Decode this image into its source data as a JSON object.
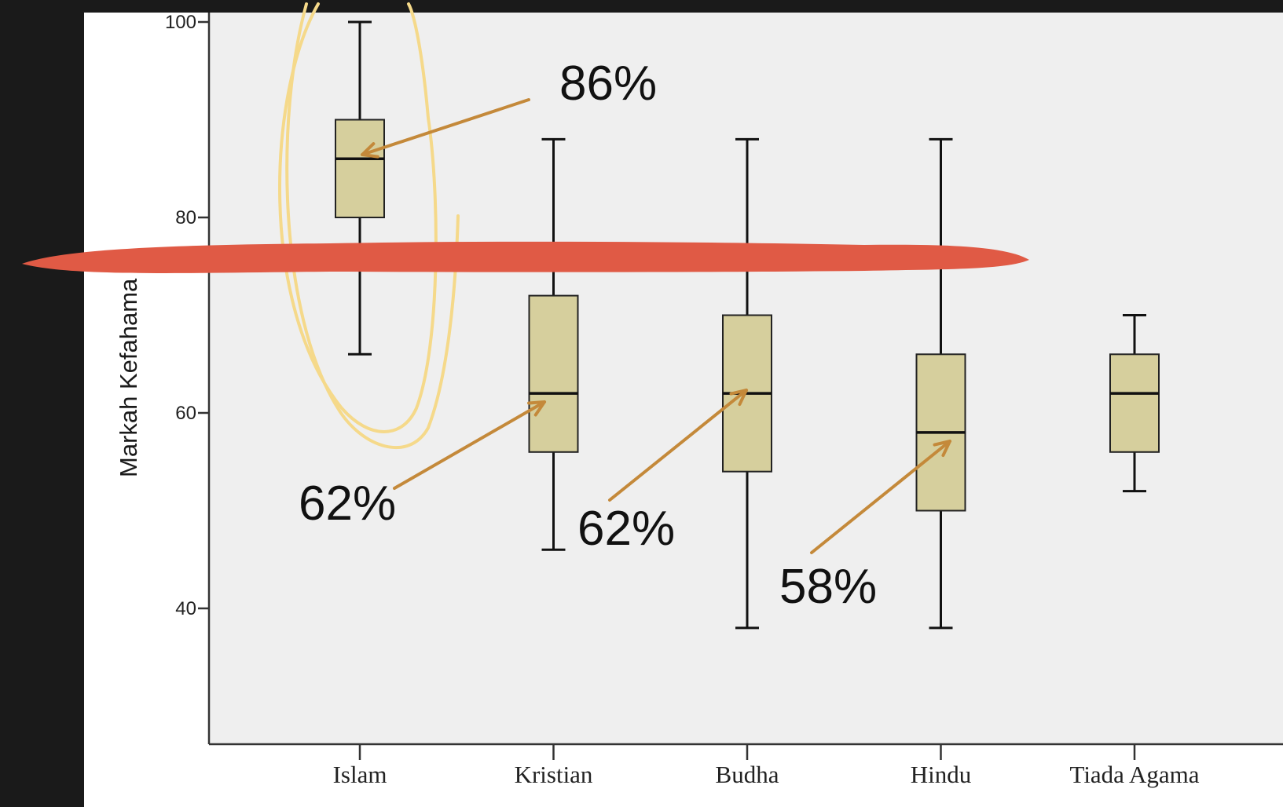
{
  "chart_data": {
    "type": "boxplot",
    "title": "",
    "xlabel": "",
    "ylabel": "Markah Kefahama",
    "ylim": [
      26,
      101
    ],
    "yticks": [
      40,
      60,
      80,
      100
    ],
    "grid": false,
    "categories": [
      "Islam",
      "Kristian",
      "Budha",
      "Hindu",
      "Tiada Agama"
    ],
    "boxes": [
      {
        "category": "Islam",
        "min": 66,
        "q1": 80,
        "median": 86,
        "q3": 90,
        "max": 100
      },
      {
        "category": "Kristian",
        "min": 46,
        "q1": 56,
        "median": 62,
        "q3": 72,
        "max": 88
      },
      {
        "category": "Budha",
        "min": 38,
        "q1": 54,
        "median": 62,
        "q3": 70,
        "max": 88
      },
      {
        "category": "Hindu",
        "min": 38,
        "q1": 50,
        "median": 58,
        "q3": 66,
        "max": 88
      },
      {
        "category": "Tiada Agama",
        "min": 52,
        "q1": 56,
        "median": 62,
        "q3": 66,
        "max": 70
      }
    ],
    "annotations": [
      {
        "text": "86%",
        "target": "Islam",
        "value": 86
      },
      {
        "text": "62%",
        "target": "Kristian",
        "value": 62
      },
      {
        "text": "62%",
        "target": "Budha",
        "value": 62
      },
      {
        "text": "58%",
        "target": "Hindu",
        "value": 58
      }
    ],
    "colors": {
      "box_fill": "#d6cf9d",
      "plot_bg": "#efefef",
      "arrow": "#c4893a",
      "highlight": "#f5d98a",
      "strike": "#e05a45",
      "frame": "#1a1a1a"
    }
  }
}
